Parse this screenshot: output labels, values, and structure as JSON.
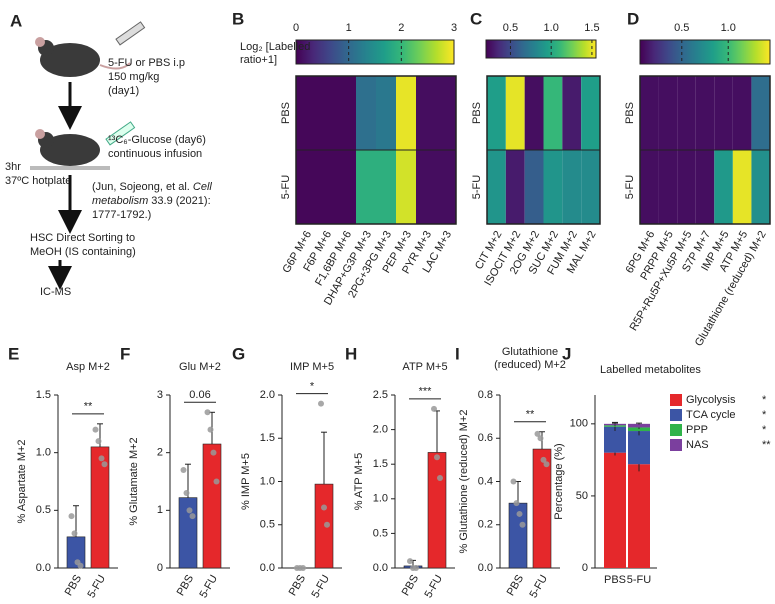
{
  "panel_a": {
    "label": "A",
    "injection": [
      "5-FU or PBS i.p",
      "150 mg/kg",
      "(day1)"
    ],
    "infusion": [
      "¹³C₆-Glucose (day6)",
      "continuous infusion"
    ],
    "hotplate": [
      "3hr",
      "37ºC hotplate"
    ],
    "citation": [
      "(Jun, Sojeong, et al. ",
      "Cell",
      "metabolism",
      " 33.9 (2021):",
      "1777-1792.)"
    ],
    "sorting": [
      "HSC Direct Sorting to",
      "MeOH (IS containing)"
    ],
    "analysis": "IC-MS"
  },
  "chart_data": [
    {
      "type": "heatmap",
      "panel_label": "B",
      "colorbar_title": [
        "Log₂ [Labelled",
        "ratio+1]"
      ],
      "rows": [
        "PBS",
        "5-FU"
      ],
      "columns": [
        "G6P M+6",
        "F6P M+6",
        "F1,6BP M+6",
        "DHAP+G3P M+3",
        "2PG+3PG M+3",
        "PEP M+3",
        "PYR M+3",
        "LAC M+3"
      ],
      "values": [
        [
          0.05,
          0.05,
          0.05,
          1.1,
          1.2,
          2.9,
          0.1,
          0.1
        ],
        [
          0.05,
          0.05,
          0.05,
          1.9,
          1.9,
          2.8,
          0.1,
          0.1
        ]
      ],
      "zlim": [
        0,
        3
      ],
      "zticks": [
        0,
        1,
        2,
        3
      ]
    },
    {
      "type": "heatmap",
      "panel_label": "C",
      "rows": [
        "PBS",
        "5-FU"
      ],
      "columns": [
        "CIT M+2",
        "ISOCIT M+2",
        "2OG M+2",
        "SUC M+2",
        "FUM M+2",
        "MAL M+2"
      ],
      "values": [
        [
          0.95,
          1.5,
          0.25,
          1.1,
          0.3,
          0.95
        ],
        [
          0.9,
          0.3,
          0.6,
          0.9,
          0.85,
          0.85
        ]
      ],
      "zlim": [
        0.2,
        1.55
      ],
      "zticks": [
        0.5,
        {
          "value": 1,
          "label": "1.0"
        },
        1.5
      ]
    },
    {
      "type": "heatmap",
      "panel_label": "D",
      "rows": [
        "PBS",
        "5-FU"
      ],
      "columns": [
        "6PG M+6",
        "PRPP M+5",
        "R5P+Ru5P+Xu5P M+5",
        "S7P M+7",
        "IMP M+5",
        "ATP M+5",
        "Glutathione (reduced) M+2"
      ],
      "values": [
        [
          0.1,
          0.1,
          0.1,
          0.1,
          0.1,
          0.1,
          0.55
        ],
        [
          0.1,
          0.1,
          0.1,
          0.1,
          0.8,
          1.4,
          0.75
        ]
      ],
      "zlim": [
        0.05,
        1.45
      ],
      "zticks": [
        0.5,
        {
          "value": 1,
          "label": "1.0"
        }
      ]
    },
    {
      "type": "bar",
      "panel_label": "E",
      "title": "Asp M+2",
      "ylabel": "% Aspartate M+2",
      "categories": [
        "PBS",
        "5-FU"
      ],
      "colors": [
        "#3c55a5",
        "#e5282b"
      ],
      "values": [
        0.27,
        1.05
      ],
      "errors": [
        0.27,
        0.2
      ],
      "points": [
        [
          0.45,
          0.3,
          0.05,
          0.02
        ],
        [
          1.2,
          1.1,
          0.95,
          0.9
        ]
      ],
      "significance": "**",
      "ylim": [
        0,
        1.5
      ],
      "yticks": [
        {
          "value": 0,
          "label": "0.0"
        },
        0.5,
        {
          "value": 1,
          "label": "1.0"
        },
        1.5
      ]
    },
    {
      "type": "bar",
      "panel_label": "F",
      "title": "Glu M+2",
      "ylabel": "% Glutamate M+2",
      "categories": [
        "PBS",
        "5-FU"
      ],
      "colors": [
        "#3c55a5",
        "#e5282b"
      ],
      "values": [
        1.22,
        2.15
      ],
      "errors": [
        0.58,
        0.55
      ],
      "points": [
        [
          1.7,
          1.3,
          1.0,
          0.9
        ],
        [
          2.7,
          2.4,
          2.0,
          1.5
        ]
      ],
      "significance": "0.06",
      "ylim": [
        0,
        3
      ],
      "yticks": [
        0,
        1,
        2,
        3
      ]
    },
    {
      "type": "bar",
      "panel_label": "G",
      "title": "IMP M+5",
      "ylabel": "% IMP M+5",
      "categories": [
        "PBS",
        "5-FU"
      ],
      "colors": [
        "#3c55a5",
        "#e5282b"
      ],
      "values": [
        0,
        0.97
      ],
      "errors": [
        0,
        0.6
      ],
      "points": [
        [
          0,
          0,
          0
        ],
        [
          1.9,
          0.7,
          0.5
        ]
      ],
      "significance": "*",
      "ylim": [
        0,
        2
      ],
      "yticks": [
        {
          "value": 0,
          "label": "0.0"
        },
        0.5,
        {
          "value": 1,
          "label": "1.0"
        },
        1.5,
        {
          "value": 2,
          "label": "2.0"
        }
      ]
    },
    {
      "type": "bar",
      "panel_label": "H",
      "title": "ATP M+5",
      "ylabel": "% ATP M+5",
      "categories": [
        "PBS",
        "5-FU"
      ],
      "colors": [
        "#3c55a5",
        "#e5282b"
      ],
      "values": [
        0.03,
        1.67
      ],
      "errors": [
        0.08,
        0.6
      ],
      "points": [
        [
          0.1,
          0,
          0
        ],
        [
          2.3,
          1.6,
          1.3
        ]
      ],
      "significance": "***",
      "ylim": [
        0,
        2.5
      ],
      "yticks": [
        {
          "value": 0,
          "label": "0.0"
        },
        0.5,
        {
          "value": 1,
          "label": "1.0"
        },
        1.5,
        {
          "value": 2,
          "label": "2.0"
        },
        2.5
      ]
    },
    {
      "type": "bar",
      "panel_label": "I",
      "title": [
        "Glutathione",
        "(reduced) M+2"
      ],
      "ylabel": "% Glutathione (reduced) M+2",
      "categories": [
        "PBS",
        "5-FU"
      ],
      "colors": [
        "#3c55a5",
        "#e5282b"
      ],
      "values": [
        0.3,
        0.55
      ],
      "errors": [
        0.1,
        0.08
      ],
      "points": [
        [
          0.4,
          0.3,
          0.25,
          0.2
        ],
        [
          0.62,
          0.6,
          0.5,
          0.48
        ]
      ],
      "significance": "**",
      "ylim": [
        0,
        0.8
      ],
      "yticks": [
        {
          "value": 0,
          "label": "0.0"
        },
        0.2,
        0.4,
        0.6,
        0.8
      ]
    },
    {
      "type": "stacked_bar",
      "panel_label": "J",
      "title": "Labelled metabolites",
      "ylabel": "Percentage (%)",
      "categories": [
        "PBS",
        "5-FU"
      ],
      "series": [
        {
          "name": "Glycolysis",
          "color": "#e5282b",
          "values": [
            80,
            72
          ],
          "errors": [
            2,
            5
          ],
          "significance": "*"
        },
        {
          "name": "TCA cycle",
          "color": "#3c55a5",
          "values": [
            18,
            23
          ],
          "errors": [
            3,
            3
          ],
          "significance": "*"
        },
        {
          "name": "PPP",
          "color": "#2fb34a",
          "values": [
            1,
            2.5
          ],
          "errors": [
            0.5,
            1
          ],
          "significance": "*"
        },
        {
          "name": "NAS",
          "color": "#7b3f9e",
          "values": [
            1,
            2.5
          ],
          "errors": [
            0.5,
            0.5
          ],
          "significance": "**"
        }
      ],
      "ylim": [
        0,
        120
      ],
      "yticks": [
        0,
        50,
        100
      ]
    }
  ]
}
